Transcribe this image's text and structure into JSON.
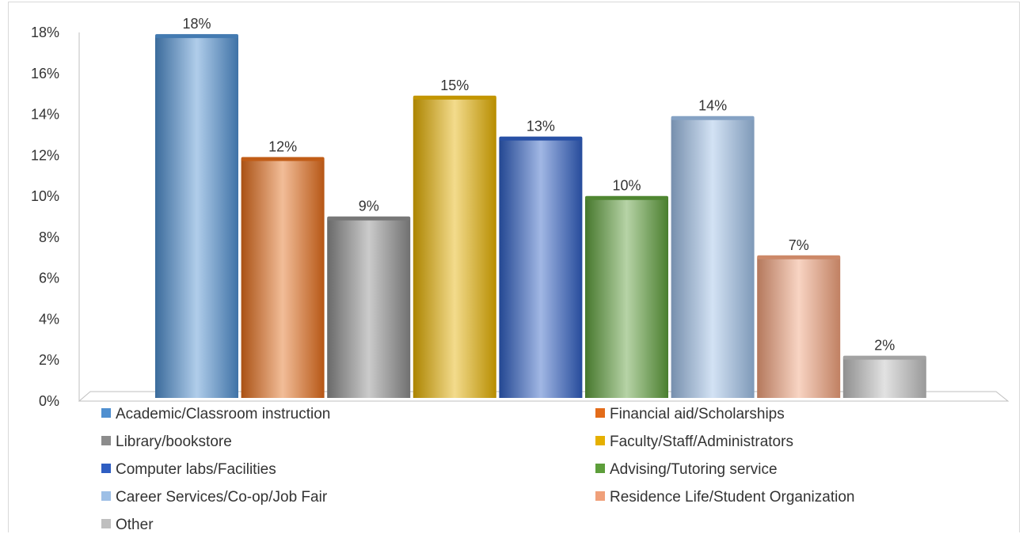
{
  "chart_data": {
    "type": "bar",
    "title": "",
    "xlabel": "",
    "ylabel": "",
    "ylim": [
      0,
      18
    ],
    "y_ticks": [
      "0%",
      "2%",
      "4%",
      "6%",
      "8%",
      "10%",
      "12%",
      "14%",
      "16%",
      "18%"
    ],
    "grid": false,
    "legend_position": "bottom",
    "categories": [
      "Academic/Classroom instruction",
      "Financial aid/Scholarships",
      "Library/bookstore",
      "Faculty/Staff/Administrators",
      "Computer labs/Facilities",
      "Advising/Tutoring service",
      "Career Services/Co-op/Job Fair",
      "Residence Life/Student Organization",
      "Other"
    ],
    "values": [
      18,
      12,
      9,
      15,
      13,
      10,
      14,
      7,
      2
    ],
    "plotted_values": [
      17.8,
      11.8,
      8.9,
      14.8,
      12.8,
      9.9,
      13.8,
      7.0,
      2.1
    ],
    "labels": [
      "18%",
      "12%",
      "9%",
      "15%",
      "13%",
      "10%",
      "14%",
      "7%",
      "2%"
    ],
    "colors": [
      "#4f8fd0",
      "#e36c1a",
      "#8c8c8c",
      "#e5b000",
      "#2f5ec2",
      "#5d9e3a",
      "#9dbfe6",
      "#f0a07a",
      "#bfbfbf"
    ]
  }
}
